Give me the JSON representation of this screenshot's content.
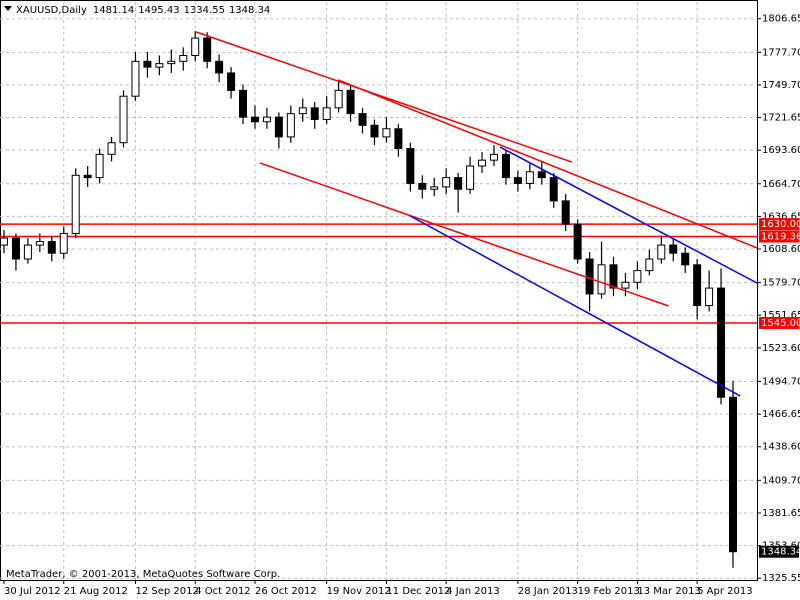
{
  "chart_data": {
    "type": "candlestick",
    "symbol": "XAUUSD,Daily",
    "footer": "MetaTrader, © 2001-2013, MetaQuotes Software Corp.",
    "up_color": "#ffffff",
    "down_color": "#000000",
    "grid": true,
    "categories": [
      "30 Jul 2012",
      null,
      null,
      null,
      null,
      "21 Aug 2012",
      null,
      null,
      null,
      null,
      null,
      "12 Sep 2012",
      null,
      null,
      null,
      null,
      "4 Oct 2012",
      null,
      null,
      null,
      null,
      "26 Oct 2012",
      null,
      null,
      null,
      null,
      null,
      "19 Nov 2012",
      null,
      null,
      null,
      null,
      "11 Dec 2012",
      null,
      null,
      null,
      null,
      "4 Jan 2013",
      null,
      null,
      null,
      null,
      null,
      "28 Jan 2013",
      null,
      null,
      null,
      null,
      "19 Feb 2013",
      null,
      null,
      null,
      null,
      "13 Mar 2013",
      null,
      null,
      null,
      null,
      "5 Apr 2013",
      null,
      null,
      null
    ],
    "candles": [
      [
        1612,
        1625,
        1605,
        1618
      ],
      [
        1618,
        1622,
        1590,
        1600
      ],
      [
        1600,
        1618,
        1596,
        1612
      ],
      [
        1612,
        1622,
        1606,
        1615
      ],
      [
        1615,
        1620,
        1598,
        1605
      ],
      [
        1605,
        1628,
        1600,
        1622
      ],
      [
        1622,
        1678,
        1618,
        1672
      ],
      [
        1672,
        1680,
        1662,
        1670
      ],
      [
        1670,
        1695,
        1665,
        1690
      ],
      [
        1690,
        1705,
        1684,
        1700
      ],
      [
        1700,
        1745,
        1696,
        1740
      ],
      [
        1740,
        1778,
        1736,
        1770
      ],
      [
        1770,
        1778,
        1756,
        1765
      ],
      [
        1765,
        1775,
        1758,
        1768
      ],
      [
        1768,
        1780,
        1760,
        1770
      ],
      [
        1770,
        1782,
        1762,
        1775
      ],
      [
        1775,
        1796,
        1770,
        1790
      ],
      [
        1790,
        1795,
        1764,
        1770
      ],
      [
        1770,
        1776,
        1752,
        1760
      ],
      [
        1760,
        1765,
        1738,
        1745
      ],
      [
        1745,
        1750,
        1716,
        1722
      ],
      [
        1722,
        1732,
        1712,
        1718
      ],
      [
        1718,
        1730,
        1712,
        1722
      ],
      [
        1722,
        1726,
        1695,
        1705
      ],
      [
        1705,
        1732,
        1700,
        1725
      ],
      [
        1725,
        1738,
        1718,
        1730
      ],
      [
        1730,
        1735,
        1712,
        1720
      ],
      [
        1720,
        1740,
        1716,
        1730
      ],
      [
        1730,
        1754,
        1726,
        1745
      ],
      [
        1745,
        1750,
        1718,
        1725
      ],
      [
        1725,
        1730,
        1708,
        1715
      ],
      [
        1715,
        1720,
        1698,
        1705
      ],
      [
        1705,
        1722,
        1700,
        1712
      ],
      [
        1712,
        1716,
        1688,
        1695
      ],
      [
        1695,
        1700,
        1658,
        1665
      ],
      [
        1665,
        1672,
        1652,
        1660
      ],
      [
        1660,
        1670,
        1654,
        1662
      ],
      [
        1662,
        1678,
        1656,
        1670
      ],
      [
        1670,
        1674,
        1640,
        1660
      ],
      [
        1660,
        1688,
        1656,
        1680
      ],
      [
        1680,
        1692,
        1674,
        1685
      ],
      [
        1685,
        1698,
        1680,
        1690
      ],
      [
        1690,
        1694,
        1664,
        1670
      ],
      [
        1670,
        1676,
        1658,
        1665
      ],
      [
        1665,
        1682,
        1660,
        1675
      ],
      [
        1675,
        1684,
        1664,
        1670
      ],
      [
        1670,
        1674,
        1644,
        1650
      ],
      [
        1650,
        1656,
        1624,
        1630
      ],
      [
        1630,
        1634,
        1596,
        1600
      ],
      [
        1600,
        1606,
        1555,
        1570
      ],
      [
        1570,
        1615,
        1566,
        1595
      ],
      [
        1595,
        1602,
        1568,
        1575
      ],
      [
        1575,
        1588,
        1568,
        1580
      ],
      [
        1580,
        1598,
        1574,
        1590
      ],
      [
        1590,
        1608,
        1586,
        1600
      ],
      [
        1600,
        1620,
        1596,
        1612
      ],
      [
        1612,
        1618,
        1598,
        1605
      ],
      [
        1605,
        1610,
        1588,
        1595
      ],
      [
        1595,
        1600,
        1548,
        1560
      ],
      [
        1560,
        1590,
        1555,
        1575
      ],
      [
        1575,
        1592,
        1475,
        1481.14
      ],
      [
        1481.14,
        1495.43,
        1334.55,
        1348.34
      ]
    ],
    "ylim": [
      1324,
      1821
    ],
    "yticks": [
      {
        "value": 1806.65,
        "label": "1806.65"
      },
      {
        "value": 1777.7,
        "label": "1777.70"
      },
      {
        "value": 1749.7,
        "label": "1749.70"
      },
      {
        "value": 1721.65,
        "label": "1721.65"
      },
      {
        "value": 1693.6,
        "label": "1693.60"
      },
      {
        "value": 1664.7,
        "label": "1664.70"
      },
      {
        "value": 1636.65,
        "label": "1636.65"
      },
      {
        "value": 1608.6,
        "label": "1608.60"
      },
      {
        "value": 1579.7,
        "label": "1579.70"
      },
      {
        "value": 1551.65,
        "label": "1551.65"
      },
      {
        "value": 1523.6,
        "label": "1523.60"
      },
      {
        "value": 1494.7,
        "label": "1494.70"
      },
      {
        "value": 1466.65,
        "label": "1466.65"
      },
      {
        "value": 1438.6,
        "label": "1438.60"
      },
      {
        "value": 1409.7,
        "label": "1409.70"
      },
      {
        "value": 1381.65,
        "label": "1381.65"
      },
      {
        "value": 1353.6,
        "label": "1353.60"
      },
      {
        "value": 1325.55,
        "label": "1325.55"
      }
    ],
    "hlines": [
      {
        "value": 1630,
        "label": "1630.00",
        "color": "#ff0000"
      },
      {
        "value": 1619.36,
        "label": "1619.36",
        "color": "#ff0000"
      },
      {
        "value": 1545,
        "label": "1545.00",
        "color": "#ff0000"
      }
    ],
    "trendlines": [
      {
        "color": "#ff0000",
        "x": [
          16.07,
          47.5
        ],
        "y": [
          1795.2,
          1683.4
        ]
      },
      {
        "color": "#ff0000",
        "x": [
          27.95,
          63.0
        ],
        "y": [
          1754,
          1609.5
        ]
      },
      {
        "color": "#ff0000",
        "x": [
          21.4,
          55.6
        ],
        "y": [
          1682.6,
          1559.6
        ]
      },
      {
        "color": "#0000ff",
        "x": [
          41.5,
          63.0
        ],
        "y": [
          1696.3,
          1579.4
        ]
      },
      {
        "color": "#0000ff",
        "x": [
          34,
          61.6
        ],
        "y": [
          1637,
          1482.2
        ]
      }
    ]
  }
}
